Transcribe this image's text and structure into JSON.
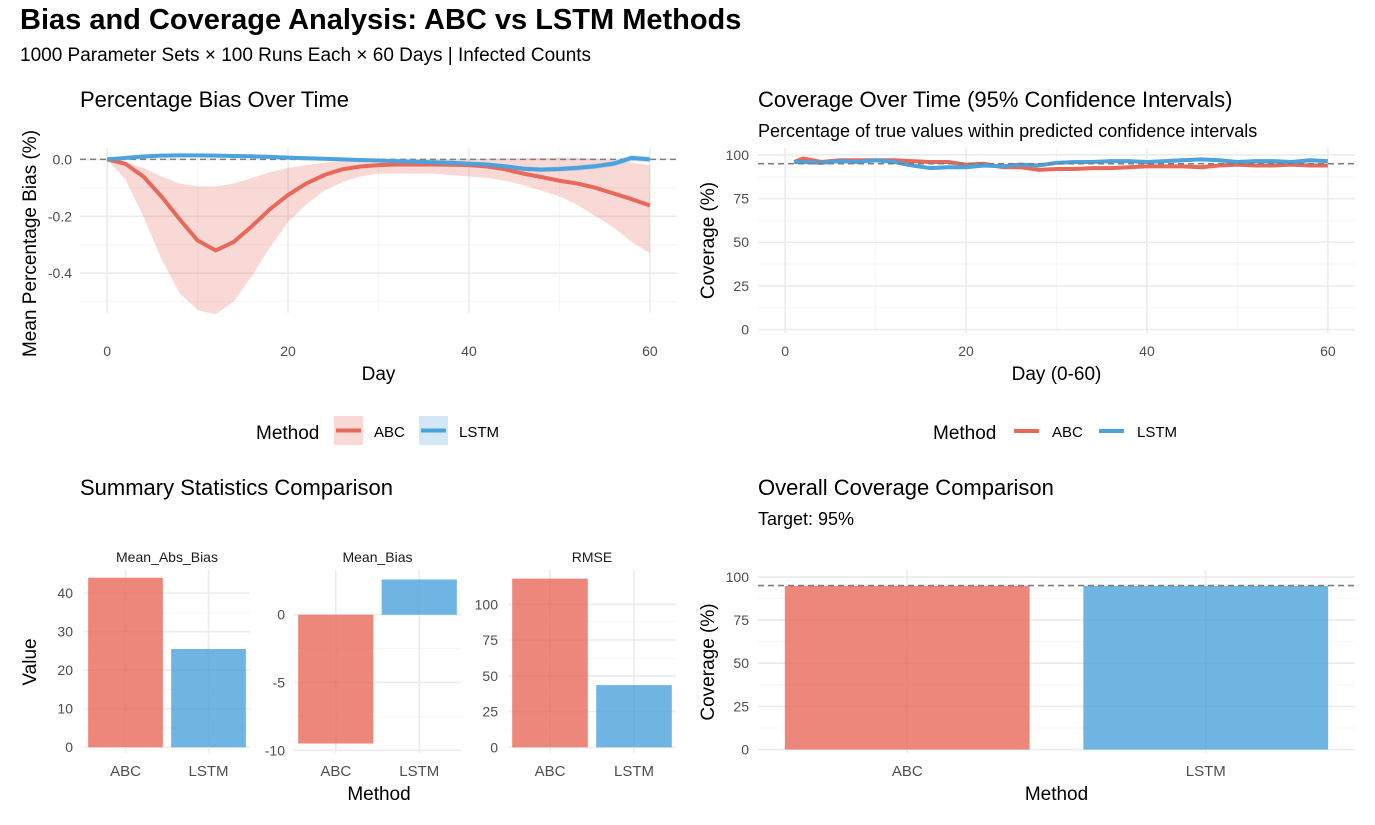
{
  "title": "Bias and Coverage Analysis: ABC vs LSTM Methods",
  "subtitle": "1000 Parameter Sets × 100 Runs Each × 60 Days | Infected Counts",
  "colors": {
    "abc": "#e8685a",
    "lstm": "#4aa3dd",
    "ref_line": "#7f7f7f"
  },
  "chart_data": [
    {
      "type": "line",
      "title": "Percentage Bias Over Time",
      "xlabel": "Day",
      "ylabel": "Mean Percentage Bias (%)",
      "xlim": [
        -3,
        63
      ],
      "ylim": [
        -0.54,
        0.04
      ],
      "x_ticks": [
        0,
        20,
        40,
        60
      ],
      "y_ticks": [
        0.0,
        -0.2,
        -0.4
      ],
      "y_tick_labels": [
        "0.0",
        "-0.2",
        "-0.4"
      ],
      "reference_line": 0,
      "legend_title": "Method",
      "legend_position": "bottom",
      "x": [
        0,
        2,
        4,
        6,
        8,
        10,
        12,
        14,
        16,
        18,
        20,
        22,
        24,
        26,
        28,
        30,
        32,
        34,
        36,
        38,
        40,
        42,
        44,
        46,
        48,
        50,
        52,
        54,
        56,
        58,
        60
      ],
      "series": [
        {
          "name": "ABC",
          "values": [
            0.0,
            -0.015,
            -0.06,
            -0.13,
            -0.21,
            -0.285,
            -0.32,
            -0.29,
            -0.235,
            -0.175,
            -0.125,
            -0.085,
            -0.055,
            -0.035,
            -0.025,
            -0.02,
            -0.018,
            -0.018,
            -0.018,
            -0.019,
            -0.02,
            -0.025,
            -0.035,
            -0.05,
            -0.062,
            -0.075,
            -0.085,
            -0.1,
            -0.12,
            -0.14,
            -0.162
          ],
          "band_lower": [
            0.0,
            -0.07,
            -0.2,
            -0.35,
            -0.47,
            -0.53,
            -0.545,
            -0.5,
            -0.41,
            -0.31,
            -0.22,
            -0.16,
            -0.11,
            -0.08,
            -0.06,
            -0.05,
            -0.05,
            -0.05,
            -0.05,
            -0.055,
            -0.06,
            -0.065,
            -0.075,
            -0.09,
            -0.11,
            -0.13,
            -0.16,
            -0.2,
            -0.24,
            -0.29,
            -0.33
          ],
          "band_upper": [
            0.0,
            -0.01,
            -0.03,
            -0.06,
            -0.085,
            -0.095,
            -0.095,
            -0.085,
            -0.065,
            -0.045,
            -0.03,
            -0.02,
            -0.012,
            -0.006,
            -0.003,
            -0.002,
            -0.001,
            0.0,
            0.0,
            0.0,
            0.0,
            0.002,
            0.003,
            0.004,
            0.005,
            0.006,
            0.005,
            0.002,
            -0.004,
            -0.012,
            -0.02
          ]
        },
        {
          "name": "LSTM",
          "values": [
            0.0,
            0.005,
            0.01,
            0.013,
            0.014,
            0.014,
            0.013,
            0.012,
            0.011,
            0.009,
            0.006,
            0.004,
            0.002,
            0.0,
            -0.002,
            -0.004,
            -0.006,
            -0.008,
            -0.01,
            -0.012,
            -0.015,
            -0.018,
            -0.024,
            -0.033,
            -0.036,
            -0.034,
            -0.03,
            -0.024,
            -0.015,
            0.005,
            0.0
          ],
          "band_lower": [
            -0.003,
            0.002,
            0.007,
            0.01,
            0.011,
            0.011,
            0.01,
            0.009,
            0.008,
            0.006,
            0.003,
            0.001,
            -0.001,
            -0.003,
            -0.005,
            -0.007,
            -0.009,
            -0.011,
            -0.014,
            -0.017,
            -0.02,
            -0.024,
            -0.031,
            -0.042,
            -0.045,
            -0.043,
            -0.04,
            -0.034,
            -0.025,
            -0.006,
            -0.01
          ],
          "band_upper": [
            0.003,
            0.008,
            0.013,
            0.016,
            0.017,
            0.017,
            0.016,
            0.015,
            0.014,
            0.012,
            0.009,
            0.007,
            0.005,
            0.003,
            0.001,
            -0.001,
            -0.003,
            -0.005,
            -0.006,
            -0.007,
            -0.01,
            -0.012,
            -0.017,
            -0.024,
            -0.027,
            -0.025,
            -0.02,
            -0.014,
            -0.005,
            0.016,
            0.01
          ]
        }
      ]
    },
    {
      "type": "line",
      "title": "Coverage Over Time (95% Confidence Intervals)",
      "subtitle": "Percentage of true values within predicted confidence intervals",
      "xlabel": "Day (0-60)",
      "ylabel": "Coverage (%)",
      "xlim": [
        -3,
        63
      ],
      "ylim": [
        -2,
        104
      ],
      "x_ticks": [
        0,
        20,
        40,
        60
      ],
      "y_ticks": [
        0,
        25,
        50,
        75,
        100
      ],
      "reference_line": 95,
      "legend_title": "Method",
      "legend_position": "bottom",
      "x": [
        1,
        2,
        4,
        6,
        8,
        10,
        12,
        14,
        16,
        18,
        20,
        22,
        24,
        26,
        28,
        30,
        32,
        34,
        36,
        38,
        40,
        42,
        44,
        46,
        48,
        50,
        52,
        54,
        56,
        58,
        60
      ],
      "series": [
        {
          "name": "ABC",
          "values": [
            96,
            98,
            96,
            97,
            97,
            97,
            97,
            96.5,
            96,
            96,
            94.5,
            95,
            93,
            93,
            91.5,
            92,
            92,
            92.5,
            92.5,
            93,
            93.5,
            93.5,
            93.5,
            93,
            94,
            94.5,
            94,
            94,
            94.5,
            94,
            94
          ]
        },
        {
          "name": "LSTM",
          "values": [
            96,
            96,
            95.5,
            96.5,
            96,
            97,
            96,
            94,
            92.5,
            93,
            93,
            94,
            93.5,
            94.5,
            94,
            95.5,
            96,
            96,
            96.5,
            96.5,
            96,
            96.5,
            97,
            97.5,
            97,
            96,
            96.5,
            96.5,
            96,
            97,
            96.5
          ]
        }
      ]
    },
    {
      "type": "bar",
      "title": "Summary Statistics Comparison",
      "xlabel": "Method",
      "ylabel": "Value",
      "categories": [
        "ABC",
        "LSTM"
      ],
      "facets": [
        {
          "name": "Mean_Abs_Bias",
          "values": [
            44,
            25.5
          ],
          "ylim": [
            -1.5,
            46
          ],
          "y_ticks": [
            0,
            10,
            20,
            30,
            40
          ]
        },
        {
          "name": "Mean_Bias",
          "values": [
            -9.5,
            2.6
          ],
          "ylim": [
            -10.2,
            3.3
          ],
          "y_ticks": [
            0,
            -5,
            -10
          ]
        },
        {
          "name": "RMSE",
          "values": [
            118,
            43.5
          ],
          "ylim": [
            -4,
            124
          ],
          "y_ticks": [
            0,
            25,
            50,
            75,
            100
          ]
        }
      ]
    },
    {
      "type": "bar",
      "title": "Overall Coverage Comparison",
      "subtitle": "Target: 95%",
      "xlabel": "Method",
      "ylabel": "Coverage (%)",
      "categories": [
        "ABC",
        "LSTM"
      ],
      "values": [
        94.8,
        94.8
      ],
      "ylim": [
        -2,
        104
      ],
      "y_ticks": [
        0,
        25,
        50,
        75,
        100
      ],
      "reference_line": 95
    }
  ]
}
